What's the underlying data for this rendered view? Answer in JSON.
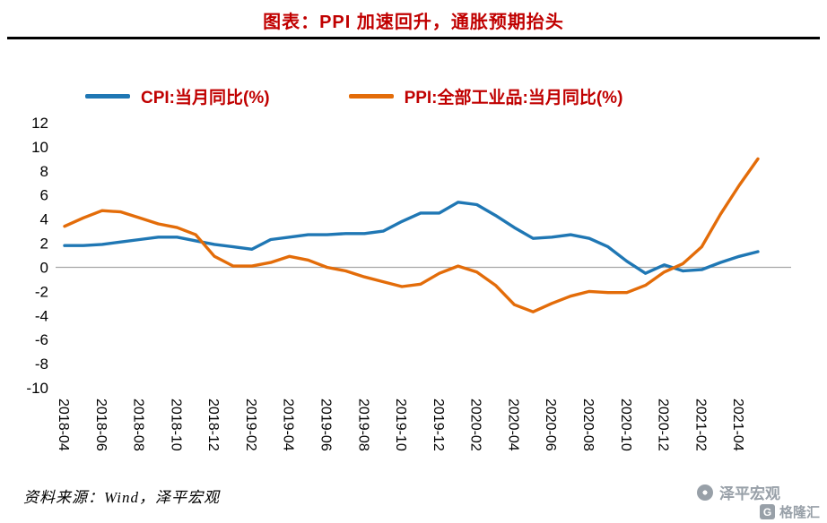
{
  "title": "图表：PPI 加速回升，通胀预期抬头",
  "source_note": "资料来源：Wind，泽平宏观",
  "watermark": {
    "brand": "泽平宏观",
    "platform": "格隆汇",
    "platform_badge": "G"
  },
  "colors": {
    "title": "#c00000",
    "legend_text": "#c00000",
    "zero_line": "#a6a6a6",
    "watermark_gray": "#98a0a8",
    "cpi_blue": "#1f77b4",
    "ppi_orange": "#e36c09"
  },
  "chart_data": {
    "type": "line",
    "x": [
      "2018-04",
      "2018-05",
      "2018-06",
      "2018-07",
      "2018-08",
      "2018-09",
      "2018-10",
      "2018-11",
      "2018-12",
      "2019-01",
      "2019-02",
      "2019-03",
      "2019-04",
      "2019-05",
      "2019-06",
      "2019-07",
      "2019-08",
      "2019-09",
      "2019-10",
      "2019-11",
      "2019-12",
      "2020-01",
      "2020-02",
      "2020-03",
      "2020-04",
      "2020-05",
      "2020-06",
      "2020-07",
      "2020-08",
      "2020-09",
      "2020-10",
      "2020-11",
      "2020-12",
      "2021-01",
      "2021-02",
      "2021-03",
      "2021-04",
      "2021-05"
    ],
    "x_tick_every": 2,
    "series": [
      {
        "name": "CPI:当月同比(%)",
        "color": "#1f77b4",
        "values": [
          1.8,
          1.8,
          1.9,
          2.1,
          2.3,
          2.5,
          2.5,
          2.2,
          1.9,
          1.7,
          1.5,
          2.3,
          2.5,
          2.7,
          2.7,
          2.8,
          2.8,
          3.0,
          3.8,
          4.5,
          4.5,
          5.4,
          5.2,
          4.3,
          3.3,
          2.4,
          2.5,
          2.7,
          2.4,
          1.7,
          0.5,
          -0.5,
          0.2,
          -0.3,
          -0.2,
          0.4,
          0.9,
          1.3
        ]
      },
      {
        "name": "PPI:全部工业品:当月同比(%)",
        "color": "#e36c09",
        "values": [
          3.4,
          4.1,
          4.7,
          4.6,
          4.1,
          3.6,
          3.3,
          2.7,
          0.9,
          0.1,
          0.1,
          0.4,
          0.9,
          0.6,
          0.0,
          -0.3,
          -0.8,
          -1.2,
          -1.6,
          -1.4,
          -0.5,
          0.1,
          -0.4,
          -1.5,
          -3.1,
          -3.7,
          -3.0,
          -2.4,
          -2.0,
          -2.1,
          -2.1,
          -1.5,
          -0.4,
          0.3,
          1.7,
          4.4,
          6.8,
          9.0
        ]
      }
    ],
    "ylim": [
      -10,
      12
    ],
    "ytick_step": 2,
    "grid": "zero-line-only",
    "legend_position": "top"
  }
}
